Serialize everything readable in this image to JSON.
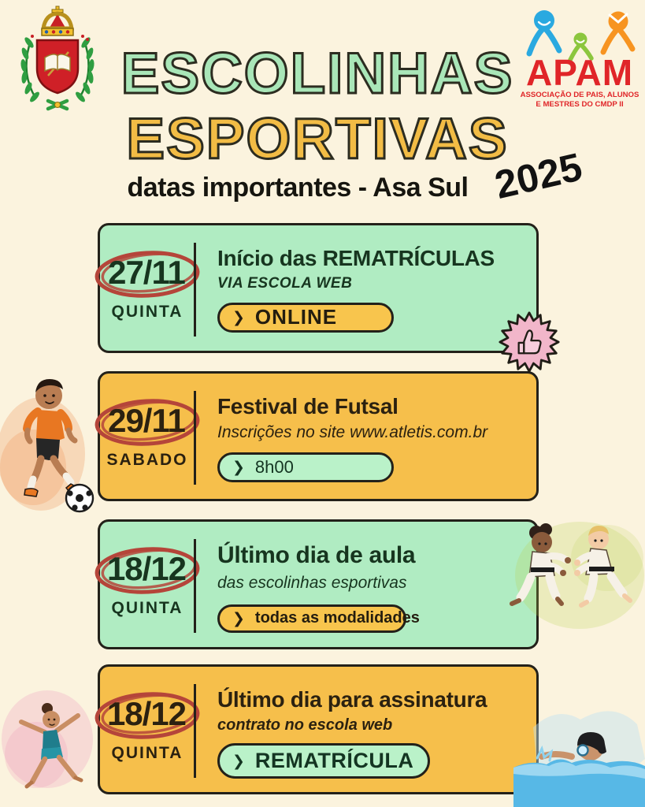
{
  "header": {
    "title_line1": "ESCOLINHAS",
    "title_line2": "ESPORTIVAS",
    "subtitle": "datas importantes - Asa Sul",
    "year": "2025"
  },
  "apam_logo": {
    "acronym": "APAM",
    "tagline_line1": "ASSOCIAÇÃO DE PAIS, ALUNOS",
    "tagline_line2": "E MESTRES DO CMDP II"
  },
  "events": [
    {
      "date": "27/11",
      "day": "QUINTA",
      "title": "Início das REMATRÍCULAS",
      "subtitle": "VIA ESCOLA WEB",
      "button_label": "ONLINE",
      "theme": "green"
    },
    {
      "date": "29/11",
      "day": "SABADO",
      "title": "Festival de Futsal",
      "subtitle": "Inscrições no site www.atletis.com.br",
      "button_label": "8h00",
      "theme": "yellow"
    },
    {
      "date": "18/12",
      "day": "QUINTA",
      "title": "Último dia de aula",
      "subtitle": "das escolinhas esportivas",
      "button_label": "todas as modalidades",
      "theme": "green"
    },
    {
      "date": "18/12",
      "day": "QUINTA",
      "title": "Último dia para assinatura",
      "subtitle": "contrato no escola web",
      "button_label": "REMATRÍCULA",
      "theme": "yellow"
    }
  ],
  "ui": {
    "chevron": "❯"
  },
  "colors": {
    "background": "#fbf3de",
    "card_green": "#b0ecc2",
    "card_yellow": "#f6bf4b",
    "outline_dark": "#23211a",
    "text_green_card": "#17351f",
    "text_yellow_card": "#2b2110",
    "date_circle_red": "#b5453a",
    "title_green": "#a9e6b8",
    "title_yellow": "#f2bc45",
    "apam_red": "#e02528",
    "sticker_pink": "#f2b6ca"
  },
  "decorations": [
    "thumbs-up-sticker",
    "soccer-player",
    "judo-kids",
    "gymnast",
    "swimmer"
  ]
}
